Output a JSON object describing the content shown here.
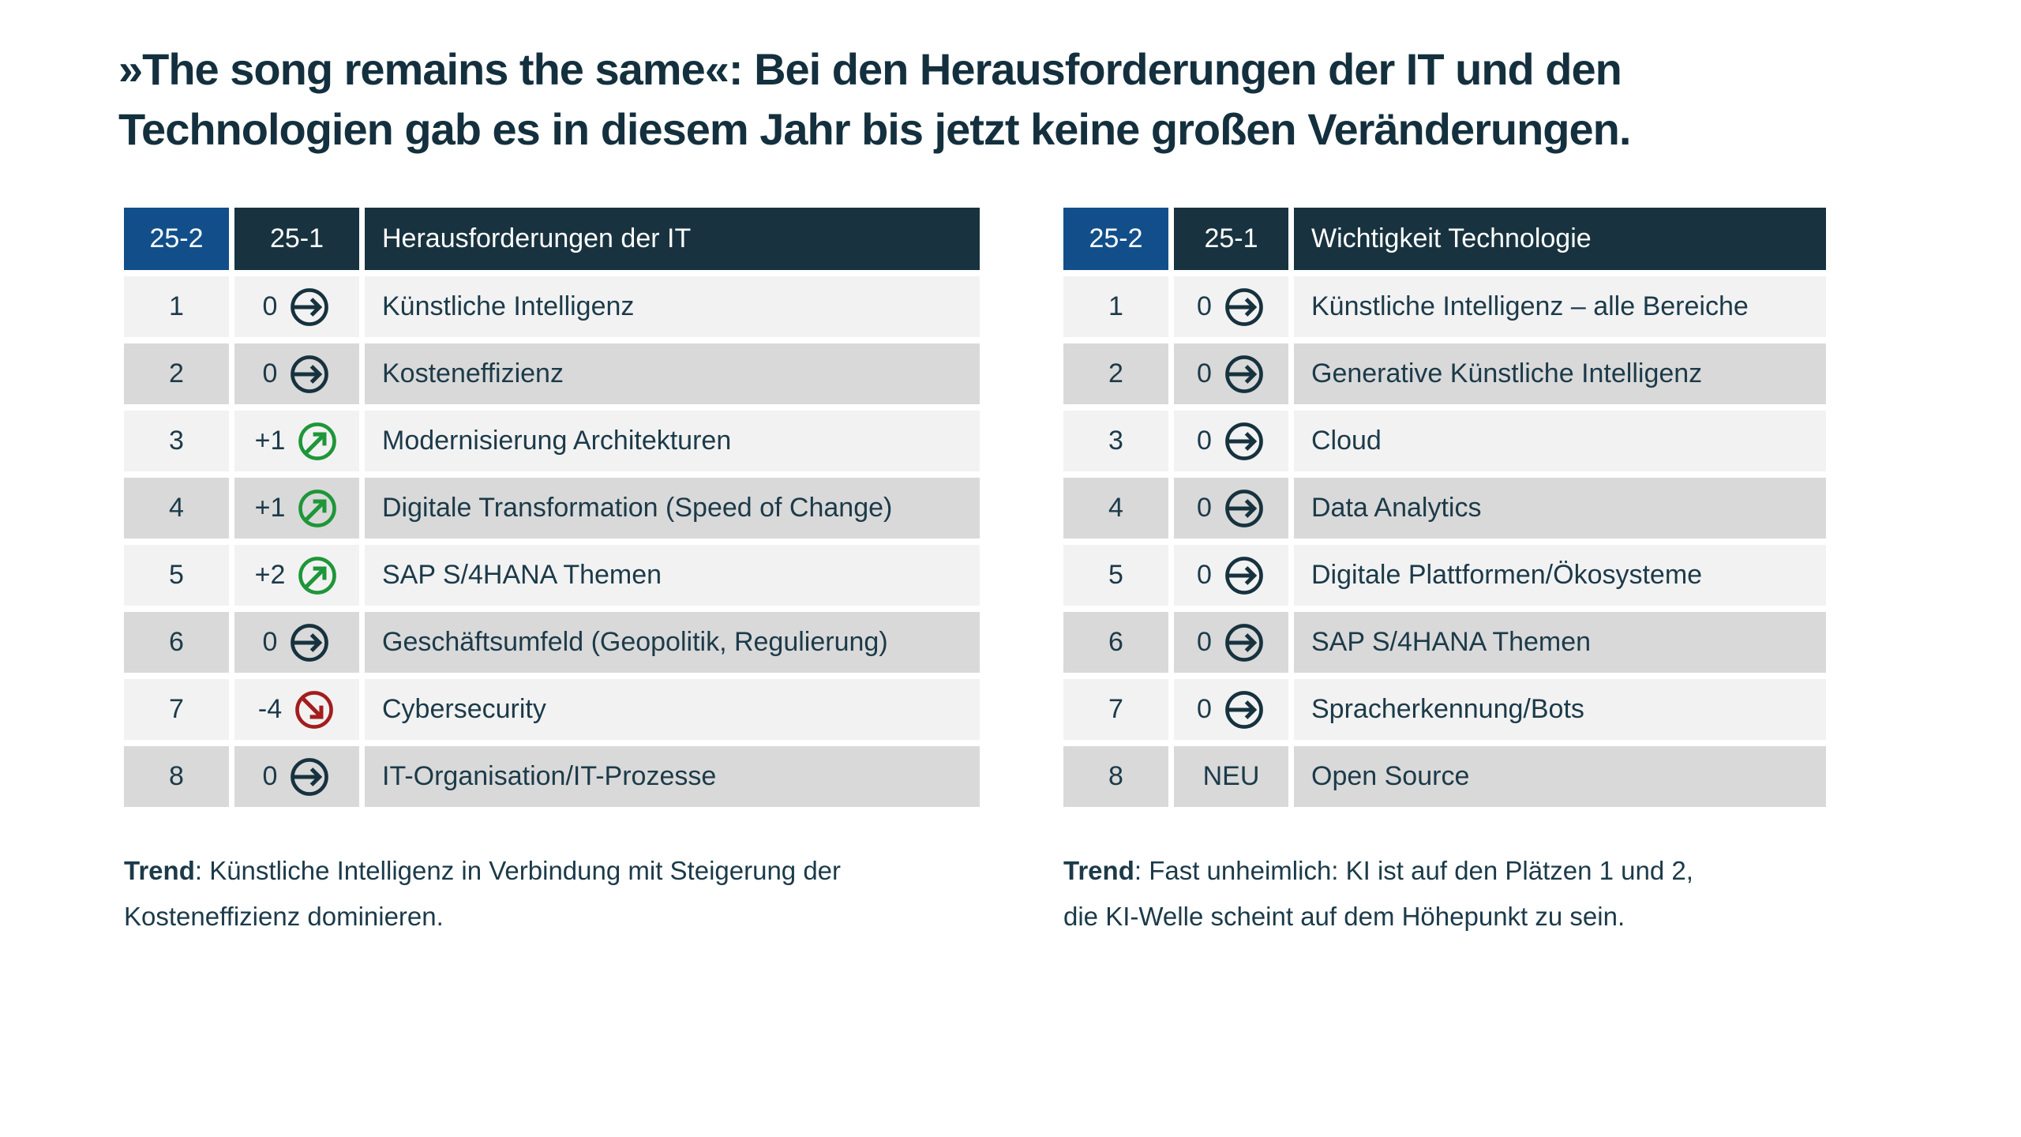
{
  "title": "»The song remains the same«: Bei den Herausforderungen der IT und den\nTechnologien gab es in diesem Jahr bis jetzt keine großen Veränderungen.",
  "colors": {
    "title_text": "#14303E",
    "body_text": "#1C3A49",
    "header_bg": "#18333F",
    "current_period_header_bg": "#124F8A",
    "row_light": "#F2F2F2",
    "row_dark": "#D9D9D9",
    "trend_same": "#17323F",
    "trend_up": "#1E9639",
    "trend_down": "#A31D1D"
  },
  "icons": {
    "same": "arrow-right-circle-icon",
    "up": "arrow-up-right-circle-icon",
    "down": "arrow-down-right-circle-icon"
  },
  "tables": [
    {
      "id": "it-challenges",
      "headers": {
        "col1": "25-2",
        "col2": "25-1",
        "col3": "Herausforderungen der IT"
      },
      "rows": [
        {
          "rank": "1",
          "change": "0",
          "trend": "same",
          "label": "Künstliche Intelligenz"
        },
        {
          "rank": "2",
          "change": "0",
          "trend": "same",
          "label": "Kosteneffizienz"
        },
        {
          "rank": "3",
          "change": "+1",
          "trend": "up",
          "label": "Modernisierung Architekturen"
        },
        {
          "rank": "4",
          "change": "+1",
          "trend": "up",
          "label": "Digitale Transformation (Speed of Change)"
        },
        {
          "rank": "5",
          "change": "+2",
          "trend": "up",
          "label": "SAP S/4HANA Themen"
        },
        {
          "rank": "6",
          "change": "0",
          "trend": "same",
          "label": "Geschäftsumfeld (Geopolitik, Regulierung)"
        },
        {
          "rank": "7",
          "change": "-4",
          "trend": "down",
          "label": "Cybersecurity"
        },
        {
          "rank": "8",
          "change": "0",
          "trend": "same",
          "label": "IT-Organisation/IT-Prozesse"
        }
      ],
      "trend_note": {
        "label": "Trend",
        "text": ": Künstliche Intelligenz in Verbindung mit Steigerung der\nKosteneffizienz dominieren."
      }
    },
    {
      "id": "technology-importance",
      "headers": {
        "col1": "25-2",
        "col2": "25-1",
        "col3": "Wichtigkeit Technologie"
      },
      "rows": [
        {
          "rank": "1",
          "change": "0",
          "trend": "same",
          "label": "Künstliche Intelligenz – alle Bereiche"
        },
        {
          "rank": "2",
          "change": "0",
          "trend": "same",
          "label": "Generative Künstliche Intelligenz"
        },
        {
          "rank": "3",
          "change": "0",
          "trend": "same",
          "label": "Cloud"
        },
        {
          "rank": "4",
          "change": "0",
          "trend": "same",
          "label": "Data Analytics"
        },
        {
          "rank": "5",
          "change": "0",
          "trend": "same",
          "label": "Digitale Plattformen/Ökosysteme"
        },
        {
          "rank": "6",
          "change": "0",
          "trend": "same",
          "label": "SAP S/4HANA Themen"
        },
        {
          "rank": "7",
          "change": "0",
          "trend": "same",
          "label": "Spracherkennung/Bots"
        },
        {
          "rank": "8",
          "change": "NEU",
          "trend": "none",
          "label": "Open Source"
        }
      ],
      "trend_note": {
        "label": "Trend",
        "text": ": Fast unheimlich: KI ist auf den Plätzen 1 und 2,\ndie KI-Welle scheint auf dem Höhepunkt zu sein."
      }
    }
  ]
}
